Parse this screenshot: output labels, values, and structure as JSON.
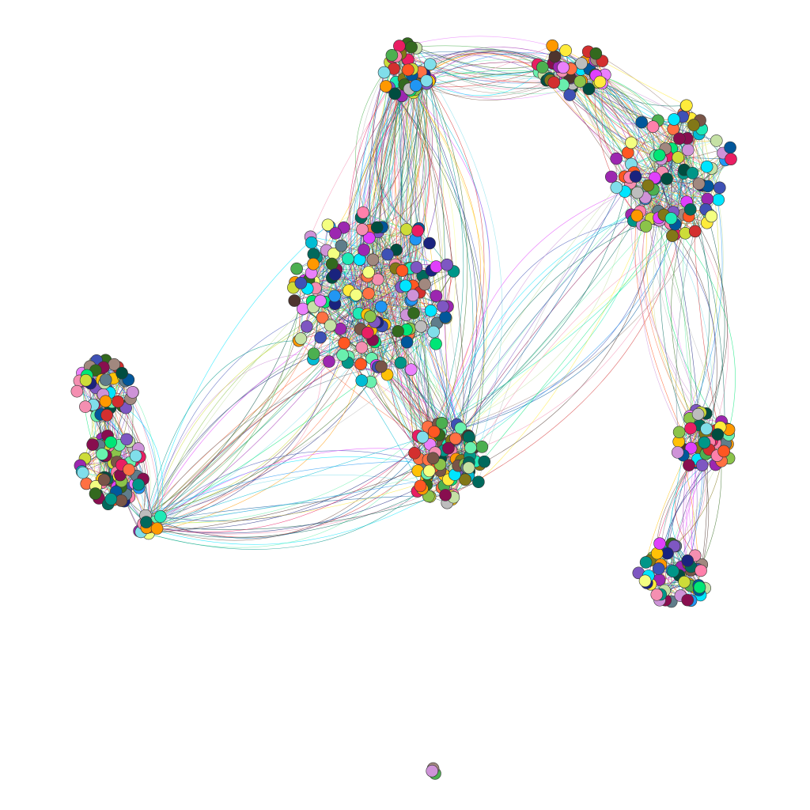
{
  "graph": {
    "type": "clustered-network",
    "background": "#ffffff",
    "node_stroke": "#333333",
    "palette": [
      "#00e5ff",
      "#e91e63",
      "#ff5722",
      "#4caf50",
      "#ffc107",
      "#9c27b0",
      "#ff80ab",
      "#00bcd4",
      "#3f51b5",
      "#795548",
      "#cddc39",
      "#009688",
      "#f48fb1",
      "#7e57c2",
      "#2196f3",
      "#8bc34a",
      "#ea80fc",
      "#607d8b",
      "#00e676",
      "#ff9800",
      "#1de9b6",
      "#d32f2f",
      "#004d40",
      "#827717",
      "#4e342e",
      "#a1887f",
      "#bdbdbd",
      "#01579b",
      "#880e4f",
      "#33691e",
      "#ffeb3b",
      "#1a237e",
      "#00695c",
      "#e040fb",
      "#ff7043",
      "#69f0ae",
      "#80deea",
      "#ce93d8",
      "#c5e1a5",
      "#f4ff81"
    ],
    "clusters": [
      {
        "id": "cluster-a",
        "nodes": 42,
        "seed": 11
      },
      {
        "id": "cluster-b",
        "nodes": 48,
        "seed": 23
      },
      {
        "id": "cluster-c",
        "nodes": 95,
        "seed": 37
      },
      {
        "id": "cluster-d",
        "nodes": 135,
        "seed": 41
      },
      {
        "id": "cluster-e",
        "nodes": 88,
        "seed": 53
      },
      {
        "id": "cluster-f",
        "nodes": 48,
        "seed": 67
      },
      {
        "id": "cluster-g",
        "nodes": 50,
        "seed": 71
      },
      {
        "id": "cluster-h",
        "nodes": 50,
        "seed": 83
      },
      {
        "id": "cluster-i",
        "nodes": 70,
        "seed": 97
      },
      {
        "id": "cluster-j",
        "nodes": 12,
        "seed": 101
      },
      {
        "id": "cluster-k",
        "nodes": 3,
        "seed": 107
      }
    ],
    "links": [
      {
        "source": "cluster-a",
        "target": "cluster-b",
        "count": 40
      },
      {
        "source": "cluster-b",
        "target": "cluster-c",
        "count": 70
      },
      {
        "source": "cluster-a",
        "target": "cluster-d",
        "count": 80
      },
      {
        "source": "cluster-a",
        "target": "cluster-e",
        "count": 40
      },
      {
        "source": "cluster-c",
        "target": "cluster-e",
        "count": 30
      },
      {
        "source": "cluster-d",
        "target": "cluster-e",
        "count": 55
      },
      {
        "source": "cluster-d",
        "target": "cluster-j",
        "count": 35
      },
      {
        "source": "cluster-e",
        "target": "cluster-j",
        "count": 25
      },
      {
        "source": "cluster-c",
        "target": "cluster-f",
        "count": 30
      },
      {
        "source": "cluster-f",
        "target": "cluster-g",
        "count": 30
      },
      {
        "source": "cluster-h",
        "target": "cluster-i",
        "count": 40
      },
      {
        "source": "cluster-h",
        "target": "cluster-j",
        "count": 25
      }
    ]
  }
}
